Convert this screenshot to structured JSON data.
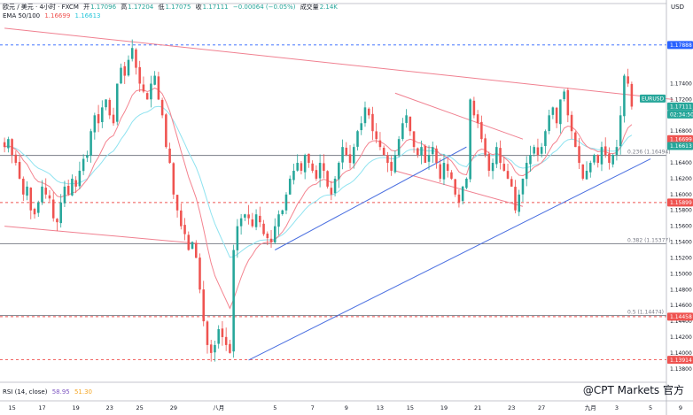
{
  "header": {
    "symbol": "欧元 / 美元 · 4小时 · FXCM",
    "open_label": "开",
    "open": "1.17096",
    "high_label": "高",
    "high": "1.17204",
    "low_label": "低",
    "low": "1.17075",
    "close_label": "收",
    "close": "1.17111",
    "change": "−0.00064 (−0.05%)",
    "volume_label": "成交量",
    "volume": "2.14K",
    "ema_label": "EMA 50/100",
    "ema50": "1.16699",
    "ema100": "1.16613"
  },
  "currency": "USD",
  "rsi": {
    "label": "RSI (14, close)",
    "value1": "58.95",
    "value2": "51.30"
  },
  "watermark": "@CPT Markets 官方",
  "colors": {
    "up": "#26a69a",
    "down": "#ef5350",
    "ema50": "#f4838f",
    "ema100": "#8fe3f0",
    "trend_blue": "#4a6fe0",
    "trend_red": "#f08090",
    "bg": "#ffffff"
  },
  "chart_data": {
    "type": "candlestick",
    "ylim": [
      1.1363,
      1.1821
    ],
    "y_ticks": [
      1.174,
      1.172,
      1.168,
      1.166,
      1.164,
      1.162,
      1.16,
      1.158,
      1.156,
      1.154,
      1.152,
      1.15,
      1.148,
      1.146,
      1.144,
      1.142,
      1.14,
      1.138
    ],
    "y_tick_labels": [
      "1.17400",
      "1.17200",
      "1.16800",
      "1.16600",
      "1.16400",
      "1.16200",
      "1.16000",
      "1.15800",
      "1.15600",
      "1.15400",
      "1.15200",
      "1.15000",
      "1.14800",
      "1.14600",
      "1.14400",
      "1.14200",
      "1.14000",
      "1.13800"
    ],
    "x_labels": [
      {
        "i": 2,
        "label": "15"
      },
      {
        "i": 10,
        "label": "17"
      },
      {
        "i": 19,
        "label": "19"
      },
      {
        "i": 28,
        "label": "23"
      },
      {
        "i": 36,
        "label": "25"
      },
      {
        "i": 45,
        "label": "29"
      },
      {
        "i": 57,
        "label": "八月"
      },
      {
        "i": 72,
        "label": "5"
      },
      {
        "i": 82,
        "label": "7"
      },
      {
        "i": 91,
        "label": "9"
      },
      {
        "i": 100,
        "label": "13"
      },
      {
        "i": 108,
        "label": "15"
      },
      {
        "i": 117,
        "label": "19"
      },
      {
        "i": 126,
        "label": "21"
      },
      {
        "i": 135,
        "label": "23"
      },
      {
        "i": 143,
        "label": "27"
      },
      {
        "i": 156,
        "label": "九月"
      },
      {
        "i": 163,
        "label": "3"
      },
      {
        "i": 172,
        "label": "5"
      },
      {
        "i": 180,
        "label": "9"
      }
    ],
    "closes": [
      1.166,
      1.167,
      1.165,
      1.164,
      1.162,
      1.16,
      1.161,
      1.158,
      1.1575,
      1.159,
      1.161,
      1.16,
      1.1595,
      1.157,
      1.1565,
      1.159,
      1.161,
      1.16,
      1.162,
      1.161,
      1.163,
      1.1645,
      1.165,
      1.168,
      1.17,
      1.169,
      1.171,
      1.172,
      1.17,
      1.169,
      1.174,
      1.176,
      1.175,
      1.177,
      1.1785,
      1.176,
      1.174,
      1.173,
      1.172,
      1.174,
      1.175,
      1.172,
      1.17,
      1.166,
      1.164,
      1.16,
      1.158,
      1.156,
      1.155,
      1.153,
      1.154,
      1.152,
      1.148,
      1.144,
      1.141,
      1.14,
      1.141,
      1.143,
      1.142,
      1.141,
      1.14,
      1.153,
      1.156,
      1.157,
      1.1575,
      1.157,
      1.156,
      1.1575,
      1.1565,
      1.155,
      1.1545,
      1.154,
      1.156,
      1.1575,
      1.158,
      1.16,
      1.162,
      1.163,
      1.164,
      1.163,
      1.165,
      1.164,
      1.163,
      1.162,
      1.164,
      1.163,
      1.161,
      1.16,
      1.162,
      1.164,
      1.166,
      1.165,
      1.164,
      1.166,
      1.168,
      1.169,
      1.171,
      1.17,
      1.168,
      1.167,
      1.166,
      1.165,
      1.164,
      1.163,
      1.165,
      1.167,
      1.169,
      1.17,
      1.168,
      1.166,
      1.165,
      1.166,
      1.164,
      1.165,
      1.166,
      1.164,
      1.162,
      1.164,
      1.163,
      1.162,
      1.16,
      1.159,
      1.161,
      1.162,
      1.172,
      1.17,
      1.169,
      1.167,
      1.165,
      1.163,
      1.164,
      1.166,
      1.164,
      1.163,
      1.162,
      1.161,
      1.158,
      1.16,
      1.162,
      1.164,
      1.165,
      1.166,
      1.165,
      1.166,
      1.168,
      1.17,
      1.171,
      1.169,
      1.172,
      1.173,
      1.17,
      1.168,
      1.166,
      1.164,
      1.162,
      1.163,
      1.164,
      1.165,
      1.164,
      1.166,
      1.165,
      1.164,
      1.165,
      1.166,
      1.17,
      1.175,
      1.174,
      1.1711
    ],
    "ema50_end": 1.16699,
    "ema100_end": 1.16613,
    "price_tags": [
      {
        "value": 1.17888,
        "label": "1.17888",
        "style": "blue"
      },
      {
        "value": 1.17111,
        "label": "EURUSD",
        "style": "green-top"
      },
      {
        "value": 1.17111,
        "label": "1.17111",
        "style": "green"
      },
      {
        "value": 1.17111,
        "label": "02:34:50",
        "style": "green-time"
      },
      {
        "value": 1.16699,
        "label": "1.16699",
        "style": "red"
      },
      {
        "value": 1.16613,
        "label": "1.16613",
        "style": "teal"
      },
      {
        "value": 1.15899,
        "label": "1.15899",
        "style": "red"
      },
      {
        "value": 1.14458,
        "label": "1.14458",
        "style": "red"
      },
      {
        "value": 1.13914,
        "label": "1.13914",
        "style": "red"
      }
    ],
    "fib_levels": [
      {
        "value": 1.16494,
        "label": "0.236 (1.16494)"
      },
      {
        "value": 1.15377,
        "label": "0.382 (1.15377)"
      },
      {
        "value": 1.14474,
        "label": "0.5 (1.14474)"
      }
    ],
    "h_lines": [
      {
        "value": 1.17888,
        "style": "blue-dash"
      },
      {
        "value": 1.16494,
        "style": "gray"
      },
      {
        "value": 1.15899,
        "style": "red-dash"
      },
      {
        "value": 1.15377,
        "style": "gray"
      },
      {
        "value": 1.14474,
        "style": "gray"
      },
      {
        "value": 1.14458,
        "style": "red-dash"
      },
      {
        "value": 1.13914,
        "style": "red-dash"
      }
    ],
    "trend_lines": [
      {
        "from": [
          0,
          1.181
        ],
        "to": [
          178,
          1.172
        ],
        "color": "red"
      },
      {
        "from": [
          0,
          1.156
        ],
        "to": [
          52,
          1.1538
        ],
        "color": "red"
      },
      {
        "from": [
          104,
          1.1728
        ],
        "to": [
          138,
          1.167
        ],
        "color": "red"
      },
      {
        "from": [
          104,
          1.163
        ],
        "to": [
          138,
          1.1585
        ],
        "color": "red"
      },
      {
        "from": [
          72,
          1.153
        ],
        "to": [
          123,
          1.166
        ],
        "color": "blue"
      },
      {
        "from": [
          65,
          1.1391
        ],
        "to": [
          172,
          1.1645
        ],
        "color": "blue"
      }
    ]
  }
}
